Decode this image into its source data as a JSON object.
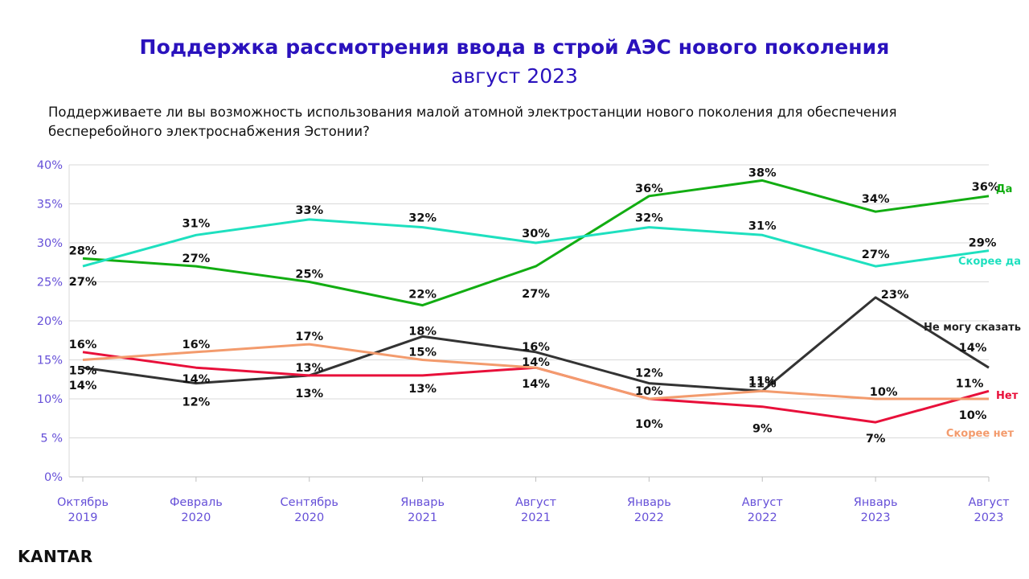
{
  "header": {
    "title": "Поддержка рассмотрения ввода в строй АЭС нового поколения",
    "subtitle": "август 2023",
    "question": "Поддерживаете ли вы возможность использования малой атомной электростанции нового поколения для обеспечения бесперебойного электроснабжения Эстонии?"
  },
  "logo": {
    "text": "KANTAR"
  },
  "chart_data": {
    "type": "line",
    "title": "Поддержка рассмотрения ввода в строй АЭС нового поколения",
    "subtitle": "август 2023",
    "x": [
      [
        "Октябрь",
        "2019"
      ],
      [
        "Февраль",
        "2020"
      ],
      [
        "Сентябрь",
        "2020"
      ],
      [
        "Январь",
        "2021"
      ],
      [
        "Август",
        "2021"
      ],
      [
        "Январь",
        "2022"
      ],
      [
        "Август",
        "2022"
      ],
      [
        "Январь",
        "2023"
      ],
      [
        "Август",
        "2023"
      ]
    ],
    "y_ticks": [
      "0%",
      "5 %",
      "10%",
      "15%",
      "20%",
      "25%",
      "30%",
      "35%",
      "40%"
    ],
    "ylim": [
      0,
      40
    ],
    "grid": true,
    "legend": "right, labels at line ends",
    "series": [
      {
        "name": "Да",
        "color": "#12ad12",
        "values": [
          28,
          27,
          25,
          22,
          27,
          36,
          38,
          34,
          36
        ]
      },
      {
        "name": "Скорее да",
        "color": "#1ee0bf",
        "values": [
          27,
          31,
          33,
          32,
          30,
          32,
          31,
          27,
          29
        ]
      },
      {
        "name": "Не могу сказать",
        "color": "#333333",
        "values": [
          14,
          12,
          13,
          18,
          16,
          12,
          11,
          23,
          14
        ]
      },
      {
        "name": "Нет",
        "color": "#e8103a",
        "values": [
          16,
          14,
          13,
          13,
          14,
          10,
          9,
          7,
          11
        ]
      },
      {
        "name": "Скорее нет",
        "color": "#f39b6d",
        "values": [
          15,
          16,
          17,
          15,
          14,
          10,
          11,
          10,
          10
        ]
      }
    ],
    "colors": {
      "axis_text": "#6650d8",
      "grid": "#d9d9d9",
      "label": "#111111"
    }
  }
}
